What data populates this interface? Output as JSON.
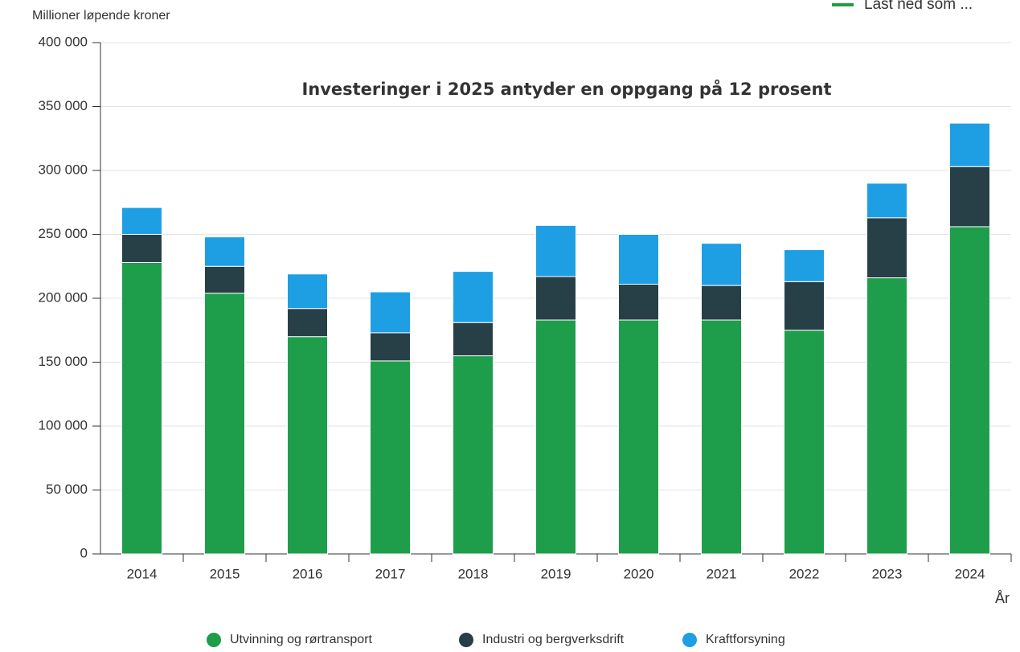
{
  "download_label": "Last ned som ...",
  "chart_data": {
    "type": "stacked_bar",
    "title": "Investeringer i 2025 antyder en oppgang på 12 prosent",
    "y_label": "Millioner løpende kroner",
    "x_label": "År",
    "categories": [
      "2014",
      "2015",
      "2016",
      "2017",
      "2018",
      "2019",
      "2020",
      "2021",
      "2022",
      "2023",
      "2024"
    ],
    "series": [
      {
        "name": "Utvinning og rørtransport",
        "color": "#1e9e4a",
        "values": [
          228000,
          204000,
          170000,
          151000,
          155000,
          183000,
          183000,
          183000,
          175000,
          216000,
          256000
        ]
      },
      {
        "name": "Industri og bergverksdrift",
        "color": "#273f46",
        "values": [
          22000,
          21000,
          22000,
          22000,
          26000,
          34000,
          28000,
          27000,
          38000,
          47000,
          47000
        ]
      },
      {
        "name": "Kraftforsyning",
        "color": "#1e9fe3",
        "values": [
          21000,
          23000,
          27000,
          32000,
          40000,
          40000,
          39000,
          33000,
          25000,
          27000,
          34000
        ]
      }
    ],
    "ylim": [
      0,
      400000
    ],
    "yticks": [
      0,
      {
        "value": 50000,
        "label": "50 000"
      },
      {
        "value": 100000,
        "label": "100 000"
      },
      {
        "value": 150000,
        "label": "150 000"
      },
      {
        "value": 200000,
        "label": "200 000"
      },
      {
        "value": 250000,
        "label": "250 000"
      },
      {
        "value": 300000,
        "label": "300 000"
      },
      {
        "value": 350000,
        "label": "350 000"
      },
      {
        "value": 400000,
        "label": "400 000"
      }
    ],
    "grid": true,
    "legend": "bottom"
  }
}
